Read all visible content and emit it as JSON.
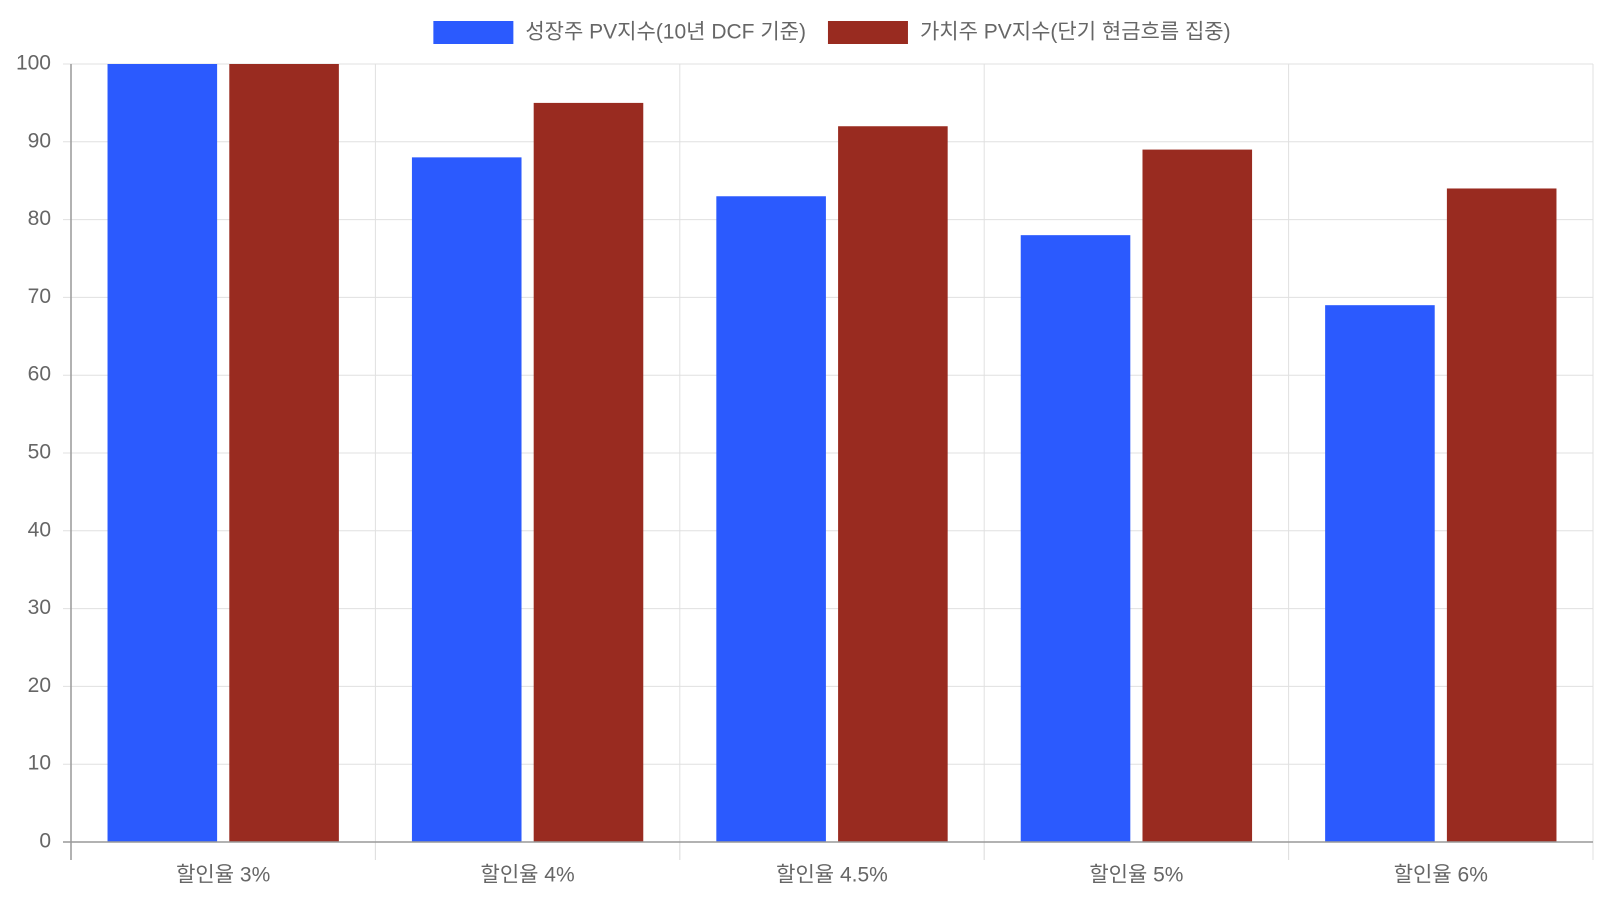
{
  "chart_data": {
    "type": "bar",
    "categories": [
      "할인율 3%",
      "할인율 4%",
      "할인율 4.5%",
      "할인율 5%",
      "할인율 6%"
    ],
    "series": [
      {
        "name": "성장주 PV지수(10년 DCF 기준)",
        "color": "#2b5afe",
        "values": [
          100,
          88,
          83,
          78,
          69
        ]
      },
      {
        "name": "가치주 PV지수(단기 현금흐름 집중)",
        "color": "#992b20",
        "values": [
          100,
          95,
          92,
          89,
          84
        ]
      }
    ],
    "ylim": [
      0,
      100
    ],
    "yticks": [
      0,
      10,
      20,
      30,
      40,
      50,
      60,
      70,
      80,
      90,
      100
    ],
    "grid": true,
    "legend": "top"
  }
}
